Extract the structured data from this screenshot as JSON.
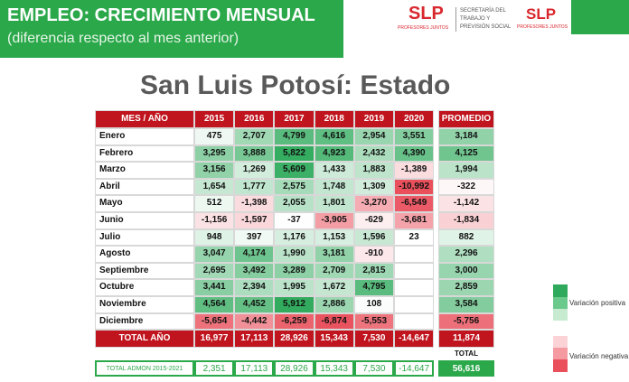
{
  "header": {
    "title": "EMPLEO: CRECIMIENTO MENSUAL",
    "subtitle": "(diferencia respecto al mes anterior)"
  },
  "logos": {
    "slp_1": "SLP",
    "slp_1_tag": "PROFESORES JUNTOS",
    "secretaria": "SECRETARÍA DEL TRABAJO Y PREVISIÓN SOCIAL",
    "slp_2": "SLP",
    "slp_2_tag": "PROFESORES JUNTOS"
  },
  "heading": "San Luis Potosí: Estado",
  "table": {
    "corner": "MES / AÑO",
    "years": [
      "2015",
      "2016",
      "2017",
      "2018",
      "2019",
      "2020"
    ],
    "average_header": "PROMEDIO",
    "rows": [
      [
        "Enero",
        "475",
        "2,707",
        "4,799",
        "4,616",
        "2,954",
        "3,551",
        "3,184"
      ],
      [
        "Febrero",
        "3,295",
        "3,888",
        "5,822",
        "4,923",
        "2,432",
        "4,390",
        "4,125"
      ],
      [
        "Marzo",
        "3,156",
        "1,269",
        "5,609",
        "1,433",
        "1,883",
        "-1,389",
        "1,994"
      ],
      [
        "Abril",
        "1,654",
        "1,777",
        "2,575",
        "1,748",
        "1,309",
        "-10,992",
        "-322"
      ],
      [
        "Mayo",
        "512",
        "-1,398",
        "2,055",
        "1,801",
        "-3,270",
        "-6,549",
        "-1,142"
      ],
      [
        "Junio",
        "-1,156",
        "-1,597",
        "-37",
        "-3,905",
        "-629",
        "-3,681",
        "-1,834"
      ],
      [
        "Julio",
        "948",
        "397",
        "1,176",
        "1,153",
        "1,596",
        "23",
        "882"
      ],
      [
        "Agosto",
        "3,047",
        "4,174",
        "1,990",
        "3,181",
        "-910",
        null,
        "2,296"
      ],
      [
        "Septiembre",
        "2,695",
        "3,492",
        "3,289",
        "2,709",
        "2,815",
        null,
        "3,000"
      ],
      [
        "Octubre",
        "3,441",
        "2,394",
        "1,995",
        "1,672",
        "4,795",
        null,
        "2,859"
      ],
      [
        "Noviembre",
        "4,564",
        "4,452",
        "5,912",
        "2,886",
        "108",
        null,
        "3,584"
      ],
      [
        "Diciembre",
        "-5,654",
        "-4,442",
        "-6,259",
        "-6,874",
        "-5,553",
        null,
        "-5,756"
      ]
    ],
    "total_row": [
      "TOTAL AÑO",
      "16,977",
      "17,113",
      "28,926",
      "15,343",
      "7,530",
      "-14,647",
      "11,874"
    ],
    "total_label": "TOTAL",
    "admin_row": [
      "TOTAL ADMON 2015-2021",
      "2,351",
      "17,113",
      "28,926",
      "15,343",
      "7,530",
      "-14,647",
      "56,616"
    ]
  },
  "legend": {
    "positive": "Variación positiva",
    "negative": "Variación negativa"
  }
}
